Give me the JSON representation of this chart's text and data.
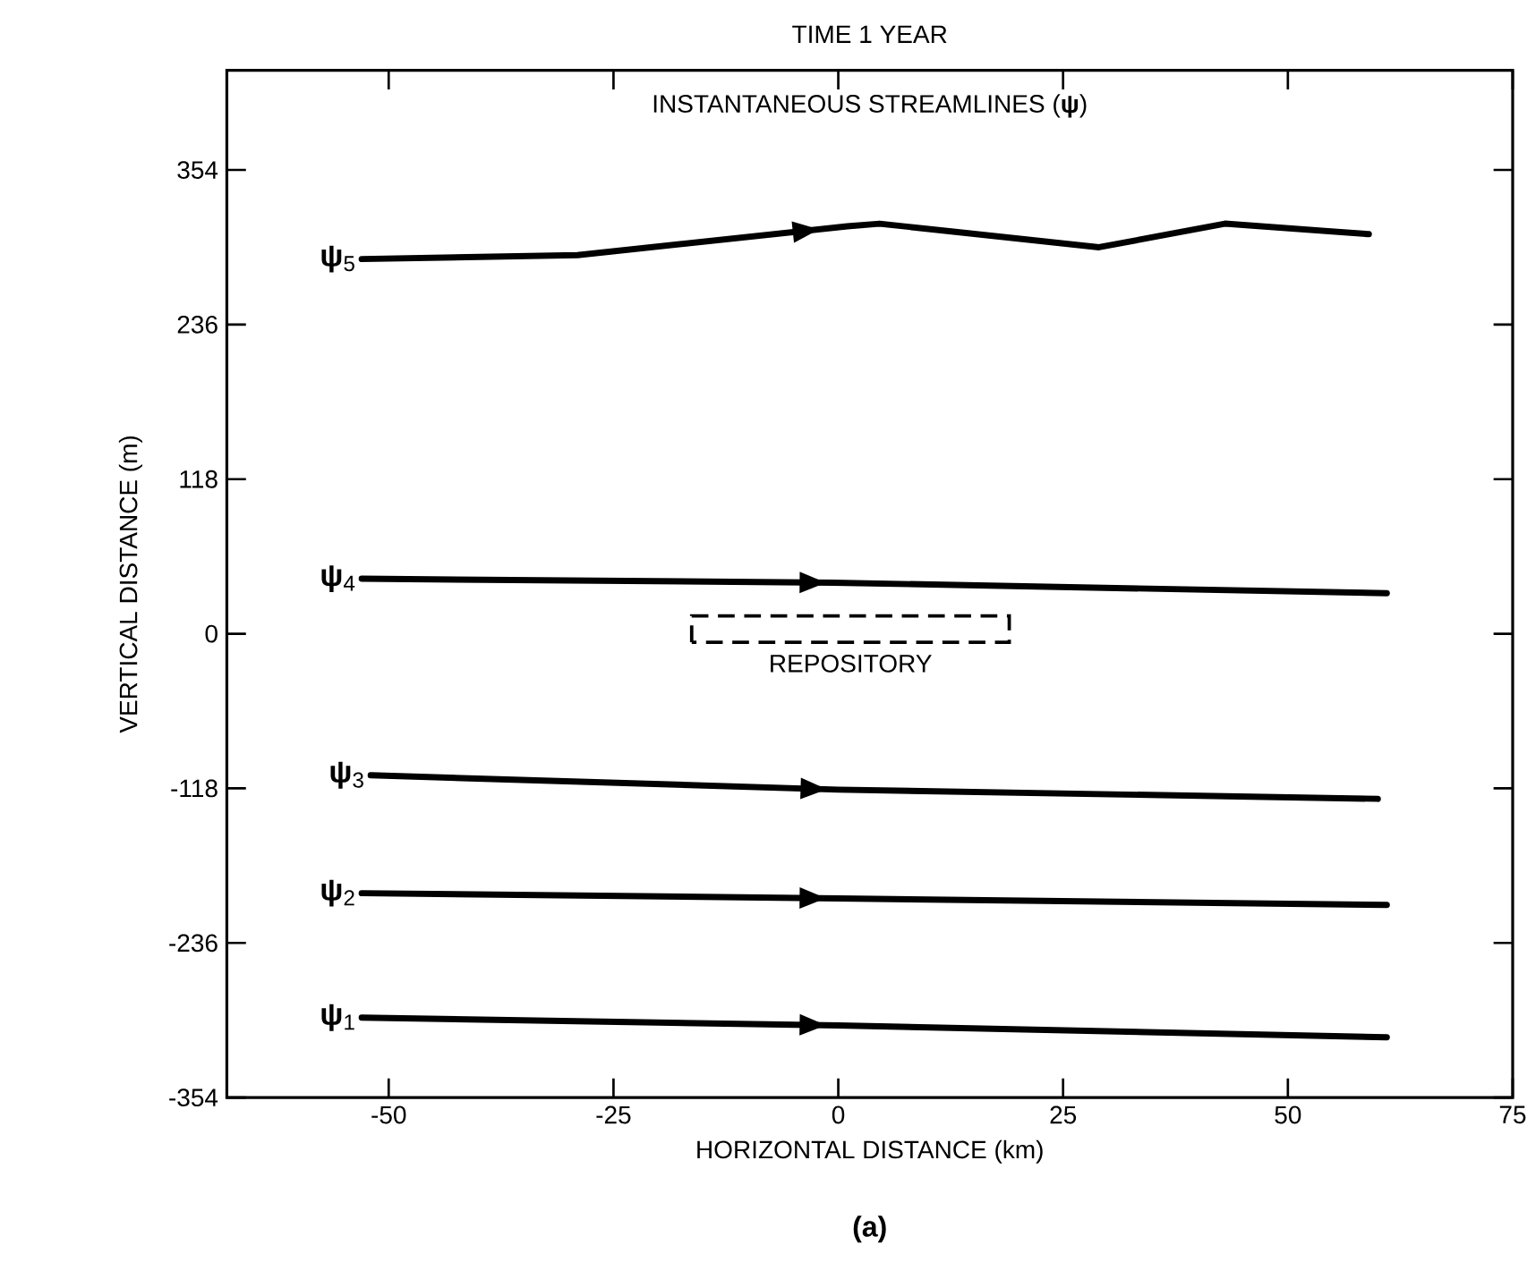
{
  "chart_data": {
    "type": "line",
    "title": "TIME    1 YEAR",
    "xlabel": "HORIZONTAL DISTANCE (km)",
    "ylabel": "VERTICAL DISTANCE (m)",
    "xlim": [
      -68,
      75
    ],
    "ylim": [
      -354,
      430
    ],
    "xticks": [
      -50,
      -25,
      0,
      25,
      50,
      75
    ],
    "yticks": [
      -354,
      -236,
      -118,
      0,
      118,
      236,
      354
    ],
    "grid": false,
    "legend": false,
    "marker": "none",
    "line_style": "solid",
    "annotations": [
      "INSTANTANEOUS STREAMLINES (**ψ**)",
      "(a)",
      "REPOSITORY"
    ],
    "series": [
      {
        "name": "**ψ**$_{5}$",
        "color": "#000000",
        "x": [
          -53,
          -29,
          1,
          4.6,
          29,
          43,
          59
        ],
        "values": [
          286,
          289,
          311,
          313,
          295,
          313,
          305
        ]
      },
      {
        "name": "**ψ**$_{4}$",
        "color": "#000000",
        "x": [
          -53,
          -0.6,
          61
        ],
        "values": [
          42,
          39,
          31
        ]
      },
      {
        "name": "**ψ**$_{3}$",
        "color": "#000000",
        "x": [
          -52,
          0,
          60
        ],
        "values": [
          -108,
          -119,
          -126
        ]
      },
      {
        "name": "**ψ**$_{2}$",
        "color": "#000000",
        "x": [
          -53,
          0,
          61
        ],
        "values": [
          -198,
          -202,
          -207
        ]
      },
      {
        "name": "**ψ**$_{1}$",
        "color": "#000000",
        "x": [
          -53,
          0,
          61
        ],
        "values": [
          -293,
          -299,
          -308
        ]
      }
    ]
  }
}
